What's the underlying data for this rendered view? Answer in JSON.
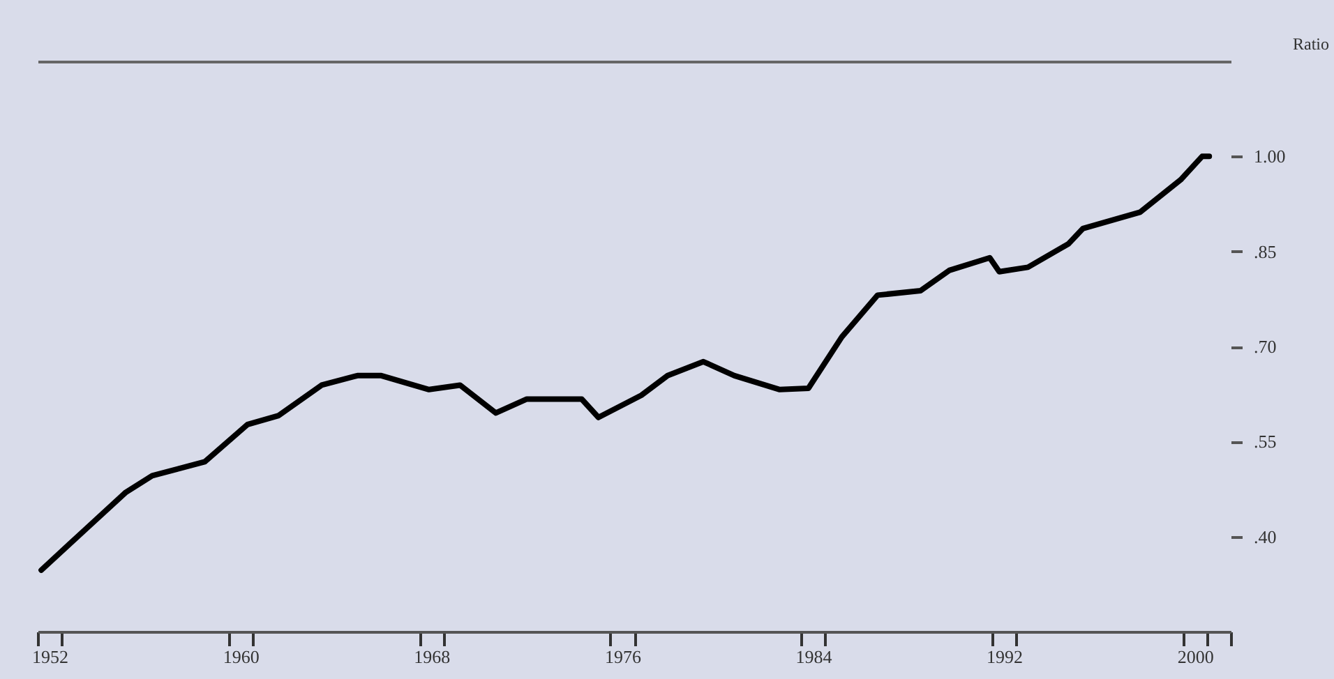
{
  "chart_data": {
    "type": "line",
    "ylabel": "Ratio",
    "x": [
      1952.15,
      1953.3,
      1955.7,
      1956.8,
      1959.0,
      1960.8,
      1962.1,
      1963.9,
      1965.4,
      1966.4,
      1968.4,
      1969.7,
      1971.2,
      1972.5,
      1974.8,
      1975.5,
      1977.3,
      1978.4,
      1979.9,
      1981.2,
      1983.1,
      1984.3,
      1985.7,
      1987.2,
      1989.0,
      1990.2,
      1991.9,
      1992.3,
      1993.5,
      1995.2,
      1995.8,
      1998.2,
      1999.9,
      2000.8,
      2001.1
    ],
    "series": [
      {
        "color": "#000000",
        "values": [
          0.347,
          0.387,
          0.47,
          0.496,
          0.518,
          0.577,
          0.591,
          0.639,
          0.654,
          0.654,
          0.632,
          0.639,
          0.595,
          0.617,
          0.617,
          0.588,
          0.623,
          0.654,
          0.676,
          0.654,
          0.632,
          0.634,
          0.715,
          0.781,
          0.788,
          0.82,
          0.84,
          0.818,
          0.825,
          0.862,
          0.886,
          0.912,
          0.963,
          1.0,
          1.0
        ]
      }
    ],
    "xlim": [
      1952,
      2002
    ],
    "xticks": [
      {
        "value": 1952,
        "label": null
      },
      {
        "value": 1953,
        "label": null
      },
      {
        "value": 1952.5,
        "label": "1952"
      },
      {
        "value": 1960,
        "label": null
      },
      {
        "value": 1961,
        "label": null
      },
      {
        "value": 1960.5,
        "label": "1960"
      },
      {
        "value": 1968,
        "label": null
      },
      {
        "value": 1969,
        "label": null
      },
      {
        "value": 1968.5,
        "label": "1968"
      },
      {
        "value": 1976,
        "label": null
      },
      {
        "value": 1977,
        "label": null
      },
      {
        "value": 1976.5,
        "label": "1976"
      },
      {
        "value": 1984,
        "label": null
      },
      {
        "value": 1985,
        "label": null
      },
      {
        "value": 1984.5,
        "label": "1984"
      },
      {
        "value": 1992,
        "label": null
      },
      {
        "value": 1993,
        "label": null
      },
      {
        "value": 1992.5,
        "label": "1992"
      },
      {
        "value": 2000,
        "label": null
      },
      {
        "value": 2001,
        "label": null
      },
      {
        "value": 2002,
        "label": null
      },
      {
        "value": 2000.5,
        "label": "2000"
      }
    ],
    "ylim": [
      0.25,
      1.15
    ],
    "yticks": [
      {
        "value": 0.4,
        "label": ".40"
      },
      {
        "value": 0.55,
        "label": ".55"
      },
      {
        "value": 0.7,
        "label": ".70"
      },
      {
        "value": 0.85,
        "label": ".85"
      },
      {
        "value": 1.0,
        "label": "1.00"
      }
    ]
  }
}
